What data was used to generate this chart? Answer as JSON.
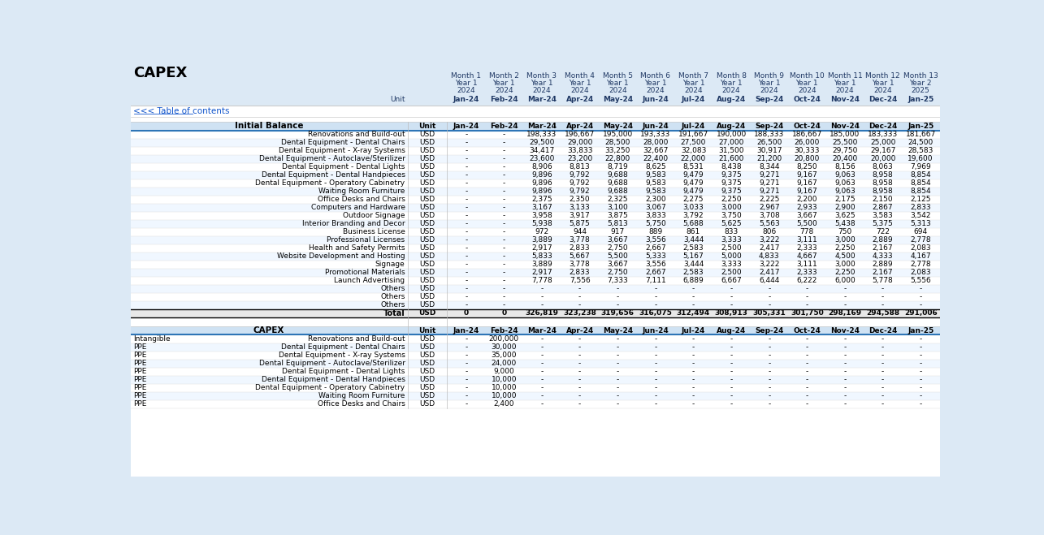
{
  "title": "CAPEX",
  "link_text": "<<< Table of contents",
  "month_labels": [
    "Month 1",
    "Month 2",
    "Month 3",
    "Month 4",
    "Month 5",
    "Month 6",
    "Month 7",
    "Month 8",
    "Month 9",
    "Month 10",
    "Month 11",
    "Month 12",
    "Month 13"
  ],
  "year_labels": [
    "Year 1",
    "Year 1",
    "Year 1",
    "Year 1",
    "Year 1",
    "Year 1",
    "Year 1",
    "Year 1",
    "Year 1",
    "Year 1",
    "Year 1",
    "Year 1",
    "Year 2"
  ],
  "yr_num_labels": [
    "2024",
    "2024",
    "2024",
    "2024",
    "2024",
    "2024",
    "2024",
    "2024",
    "2024",
    "2024",
    "2024",
    "2024",
    "2025"
  ],
  "month_date_labels": [
    "Jan-24",
    "Feb-24",
    "Mar-24",
    "Apr-24",
    "May-24",
    "Jun-24",
    "Jul-24",
    "Aug-24",
    "Sep-24",
    "Oct-24",
    "Nov-24",
    "Dec-24",
    "Jan-25"
  ],
  "section1_title": "Initial Balance",
  "section1_rows": [
    [
      "Renovations and Build-out",
      "USD",
      "-",
      "-",
      "198,333",
      "196,667",
      "195,000",
      "193,333",
      "191,667",
      "190,000",
      "188,333",
      "186,667",
      "185,000",
      "183,333",
      "181,667"
    ],
    [
      "Dental Equipment - Dental Chairs",
      "USD",
      "-",
      "-",
      "29,500",
      "29,000",
      "28,500",
      "28,000",
      "27,500",
      "27,000",
      "26,500",
      "26,000",
      "25,500",
      "25,000",
      "24,500"
    ],
    [
      "Dental Equipment - X-ray Systems",
      "USD",
      "-",
      "-",
      "34,417",
      "33,833",
      "33,250",
      "32,667",
      "32,083",
      "31,500",
      "30,917",
      "30,333",
      "29,750",
      "29,167",
      "28,583"
    ],
    [
      "Dental Equipment - Autoclave/Sterilizer",
      "USD",
      "-",
      "-",
      "23,600",
      "23,200",
      "22,800",
      "22,400",
      "22,000",
      "21,600",
      "21,200",
      "20,800",
      "20,400",
      "20,000",
      "19,600"
    ],
    [
      "Dental Equipment - Dental Lights",
      "USD",
      "-",
      "-",
      "8,906",
      "8,813",
      "8,719",
      "8,625",
      "8,531",
      "8,438",
      "8,344",
      "8,250",
      "8,156",
      "8,063",
      "7,969"
    ],
    [
      "Dental Equipment - Dental Handpieces",
      "USD",
      "-",
      "-",
      "9,896",
      "9,792",
      "9,688",
      "9,583",
      "9,479",
      "9,375",
      "9,271",
      "9,167",
      "9,063",
      "8,958",
      "8,854"
    ],
    [
      "Dental Equipment - Operatory Cabinetry",
      "USD",
      "-",
      "-",
      "9,896",
      "9,792",
      "9,688",
      "9,583",
      "9,479",
      "9,375",
      "9,271",
      "9,167",
      "9,063",
      "8,958",
      "8,854"
    ],
    [
      "Waiting Room Furniture",
      "USD",
      "-",
      "-",
      "9,896",
      "9,792",
      "9,688",
      "9,583",
      "9,479",
      "9,375",
      "9,271",
      "9,167",
      "9,063",
      "8,958",
      "8,854"
    ],
    [
      "Office Desks and Chairs",
      "USD",
      "-",
      "-",
      "2,375",
      "2,350",
      "2,325",
      "2,300",
      "2,275",
      "2,250",
      "2,225",
      "2,200",
      "2,175",
      "2,150",
      "2,125"
    ],
    [
      "Computers and Hardware",
      "USD",
      "-",
      "-",
      "3,167",
      "3,133",
      "3,100",
      "3,067",
      "3,033",
      "3,000",
      "2,967",
      "2,933",
      "2,900",
      "2,867",
      "2,833"
    ],
    [
      "Outdoor Signage",
      "USD",
      "-",
      "-",
      "3,958",
      "3,917",
      "3,875",
      "3,833",
      "3,792",
      "3,750",
      "3,708",
      "3,667",
      "3,625",
      "3,583",
      "3,542"
    ],
    [
      "Interior Branding and Decor",
      "USD",
      "-",
      "-",
      "5,938",
      "5,875",
      "5,813",
      "5,750",
      "5,688",
      "5,625",
      "5,563",
      "5,500",
      "5,438",
      "5,375",
      "5,313"
    ],
    [
      "Business License",
      "USD",
      "-",
      "-",
      "972",
      "944",
      "917",
      "889",
      "861",
      "833",
      "806",
      "778",
      "750",
      "722",
      "694"
    ],
    [
      "Professional Licenses",
      "USD",
      "-",
      "-",
      "3,889",
      "3,778",
      "3,667",
      "3,556",
      "3,444",
      "3,333",
      "3,222",
      "3,111",
      "3,000",
      "2,889",
      "2,778"
    ],
    [
      "Health and Safety Permits",
      "USD",
      "-",
      "-",
      "2,917",
      "2,833",
      "2,750",
      "2,667",
      "2,583",
      "2,500",
      "2,417",
      "2,333",
      "2,250",
      "2,167",
      "2,083"
    ],
    [
      "Website Development and Hosting",
      "USD",
      "-",
      "-",
      "5,833",
      "5,667",
      "5,500",
      "5,333",
      "5,167",
      "5,000",
      "4,833",
      "4,667",
      "4,500",
      "4,333",
      "4,167"
    ],
    [
      "Signage",
      "USD",
      "-",
      "-",
      "3,889",
      "3,778",
      "3,667",
      "3,556",
      "3,444",
      "3,333",
      "3,222",
      "3,111",
      "3,000",
      "2,889",
      "2,778"
    ],
    [
      "Promotional Materials",
      "USD",
      "-",
      "-",
      "2,917",
      "2,833",
      "2,750",
      "2,667",
      "2,583",
      "2,500",
      "2,417",
      "2,333",
      "2,250",
      "2,167",
      "2,083"
    ],
    [
      "Launch Advertising",
      "USD",
      "-",
      "-",
      "7,778",
      "7,556",
      "7,333",
      "7,111",
      "6,889",
      "6,667",
      "6,444",
      "6,222",
      "6,000",
      "5,778",
      "5,556"
    ],
    [
      "Others",
      "USD",
      "-",
      "-",
      "-",
      "-",
      "-",
      "-",
      "-",
      "-",
      "-",
      "-",
      "-",
      "-",
      "-"
    ],
    [
      "Others",
      "USD",
      "-",
      "-",
      "-",
      "-",
      "-",
      "-",
      "-",
      "-",
      "-",
      "-",
      "-",
      "-",
      "-"
    ],
    [
      "Others",
      "USD",
      "-",
      "-",
      "-",
      "-",
      "-",
      "-",
      "-",
      "-",
      "-",
      "-",
      "-",
      "-",
      "-"
    ]
  ],
  "total_row": [
    "Total",
    "USD",
    "0",
    "0",
    "326,819",
    "323,238",
    "319,656",
    "316,075",
    "312,494",
    "308,913",
    "305,331",
    "301,750",
    "298,169",
    "294,588",
    "291,006"
  ],
  "section2_title": "CAPEX",
  "section2_rows": [
    [
      "Intangible",
      "Renovations and Build-out",
      "USD",
      "-",
      "200,000",
      "-",
      "-",
      "-",
      "-",
      "-",
      "-",
      "-",
      "-",
      "-",
      "-",
      "-"
    ],
    [
      "PPE",
      "Dental Equipment - Dental Chairs",
      "USD",
      "-",
      "30,000",
      "-",
      "-",
      "-",
      "-",
      "-",
      "-",
      "-",
      "-",
      "-",
      "-",
      "-"
    ],
    [
      "PPE",
      "Dental Equipment - X-ray Systems",
      "USD",
      "-",
      "35,000",
      "-",
      "-",
      "-",
      "-",
      "-",
      "-",
      "-",
      "-",
      "-",
      "-",
      "-"
    ],
    [
      "PPE",
      "Dental Equipment - Autoclave/Sterilizer",
      "USD",
      "-",
      "24,000",
      "-",
      "-",
      "-",
      "-",
      "-",
      "-",
      "-",
      "-",
      "-",
      "-",
      "-"
    ],
    [
      "PPE",
      "Dental Equipment - Dental Lights",
      "USD",
      "-",
      "9,000",
      "-",
      "-",
      "-",
      "-",
      "-",
      "-",
      "-",
      "-",
      "-",
      "-",
      "-"
    ],
    [
      "PPE",
      "Dental Equipment - Dental Handpieces",
      "USD",
      "-",
      "10,000",
      "-",
      "-",
      "-",
      "-",
      "-",
      "-",
      "-",
      "-",
      "-",
      "-",
      "-"
    ],
    [
      "PPE",
      "Dental Equipment - Operatory Cabinetry",
      "USD",
      "-",
      "10,000",
      "-",
      "-",
      "-",
      "-",
      "-",
      "-",
      "-",
      "-",
      "-",
      "-",
      "-"
    ],
    [
      "PPE",
      "Waiting Room Furniture",
      "USD",
      "-",
      "10,000",
      "-",
      "-",
      "-",
      "-",
      "-",
      "-",
      "-",
      "-",
      "-",
      "-",
      "-"
    ],
    [
      "PPE",
      "Office Desks and Chairs",
      "USD",
      "-",
      "2,400",
      "-",
      "-",
      "-",
      "-",
      "-",
      "-",
      "-",
      "-",
      "-",
      "-",
      "-"
    ]
  ],
  "bg_light_blue": "#dce9f5",
  "bg_white": "#ffffff",
  "bg_section_header": "#cfe2f3",
  "color_blue_border": "#2e75b6",
  "color_header_text": "#1f3864",
  "color_link": "#1155CC",
  "color_black": "#000000",
  "color_gray_line": "#aaaaaa",
  "color_total_bg": "#e8e8e8",
  "color_row_alt": "#f0f7ff"
}
